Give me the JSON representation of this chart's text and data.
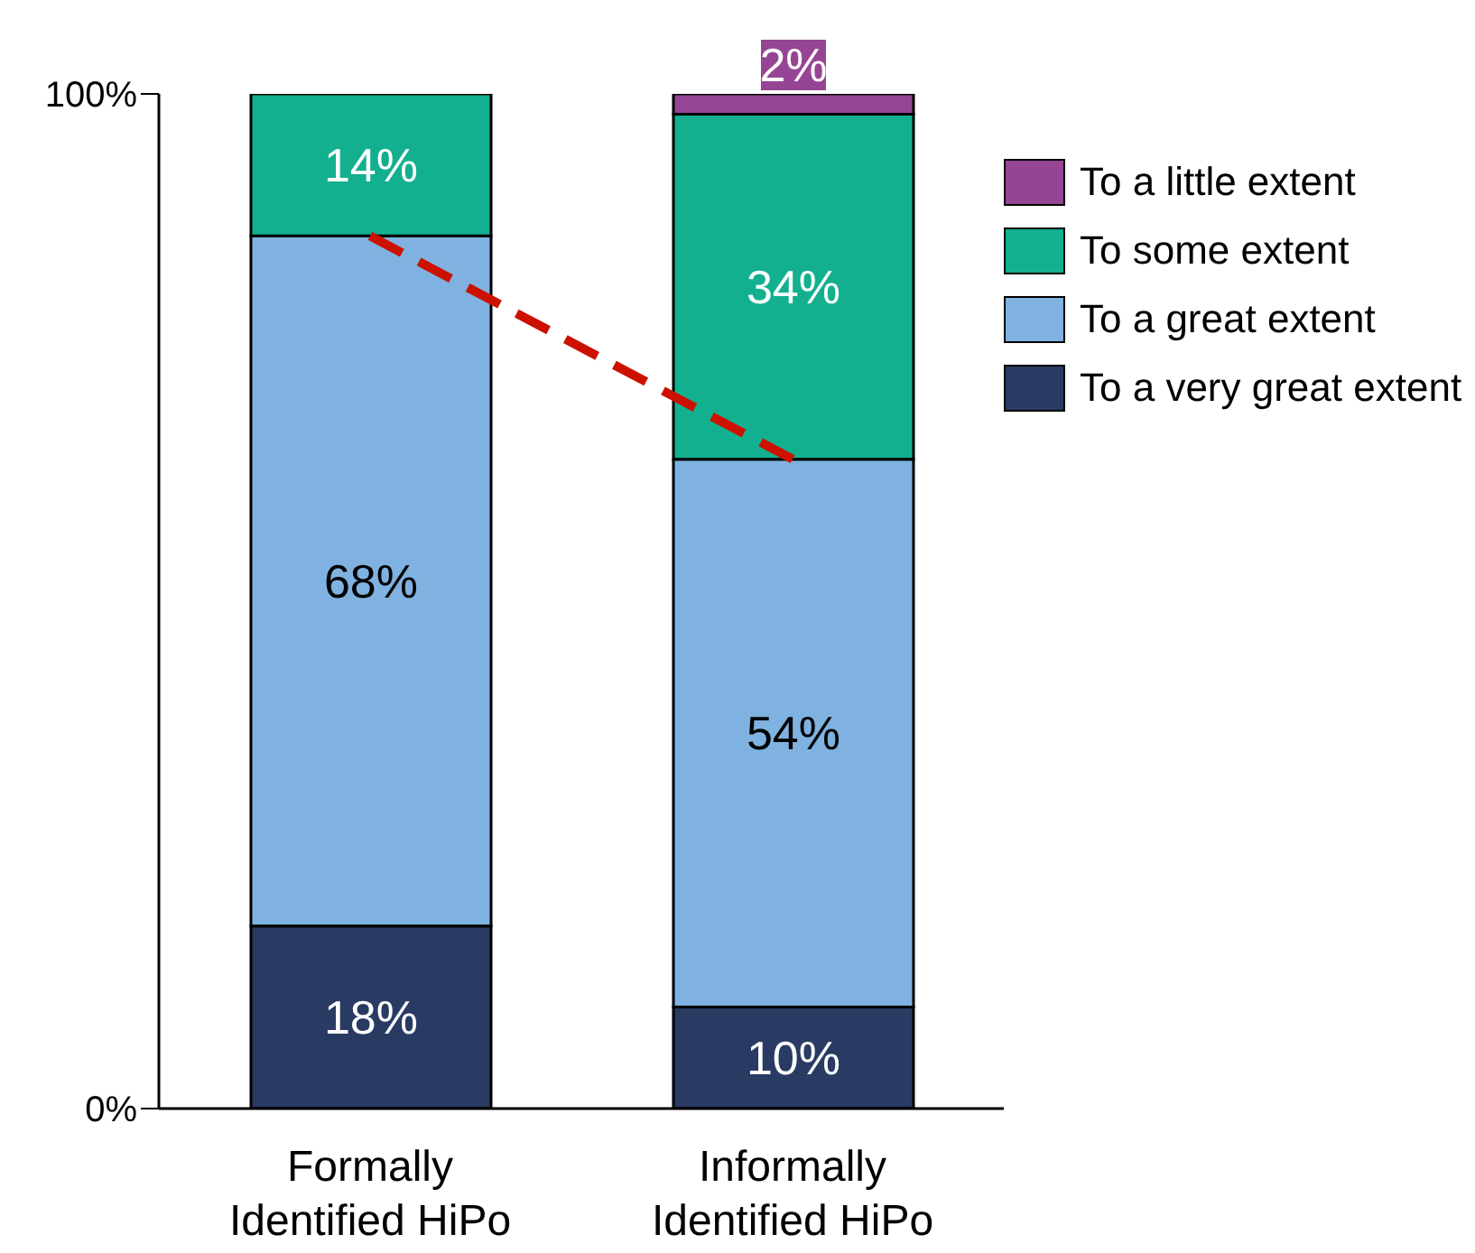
{
  "chart_data": {
    "type": "bar",
    "stacked": true,
    "categories": [
      "Formally Identified HiPo",
      "Informally Identified HiPo"
    ],
    "series": [
      {
        "name": "To a very great extent",
        "color": "#293b63",
        "values": [
          18,
          10
        ],
        "value_labels": [
          "18%",
          "10%"
        ]
      },
      {
        "name": "To a great extent",
        "color": "#7fb2e0",
        "values": [
          68,
          54
        ],
        "value_labels": [
          "68%",
          "54%"
        ]
      },
      {
        "name": "To some extent",
        "color": "#12b08e",
        "values": [
          14,
          34
        ],
        "value_labels": [
          "14%",
          "34%"
        ]
      },
      {
        "name": "To a little extent",
        "color": "#964594",
        "values": [
          null,
          2
        ],
        "value_labels": [
          null,
          "2%"
        ]
      },
      {
        "type": "line",
        "color": "#cc1100",
        "values": [
          86,
          64
        ],
        "line_style": "dashed",
        "marker": "none"
      }
    ],
    "ylim": [
      0,
      100
    ],
    "yticks": [
      {
        "value": 0,
        "label": "0%"
      },
      {
        "value": 100,
        "label": "100%"
      }
    ],
    "grid": false,
    "legend": "right"
  }
}
